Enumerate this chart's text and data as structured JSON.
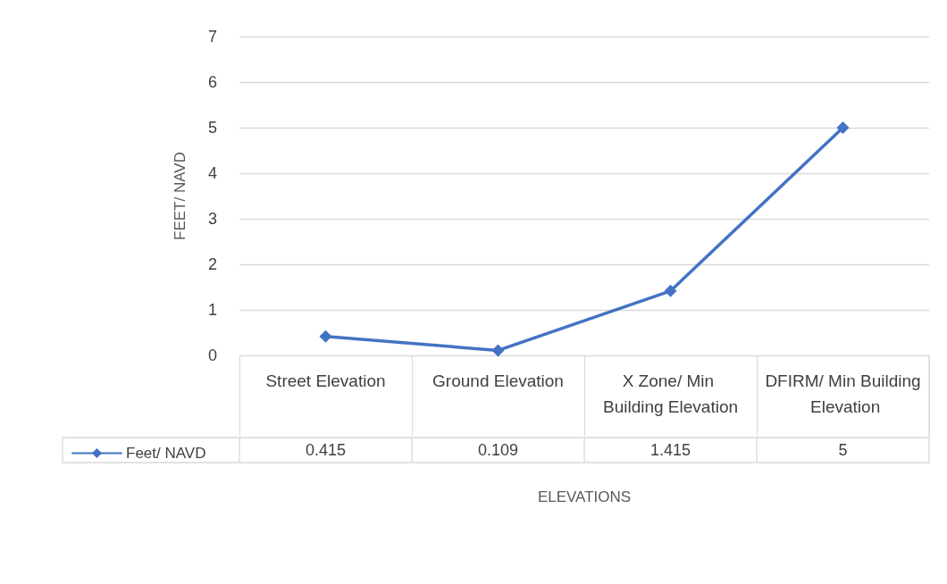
{
  "chart_data": {
    "type": "line",
    "xlabel": "ELEVATIONS",
    "ylabel": "FEET/ NAVD",
    "categories": [
      "Street Elevation",
      "Ground Elevation",
      "X Zone/ Min Building Elevation",
      "DFIRM/ Min Building Elevation"
    ],
    "series": [
      {
        "name": "Feet/ NAVD",
        "color": "#4472c4",
        "values": [
          0.415,
          0.109,
          1.415,
          5
        ]
      }
    ],
    "ylim": [
      0,
      7
    ],
    "yticks": [
      0,
      1,
      2,
      3,
      4,
      5,
      6,
      7
    ],
    "grid": "y",
    "legend": "bottom left",
    "marker": "diamond",
    "line_style": "solid",
    "data_labels": true
  }
}
